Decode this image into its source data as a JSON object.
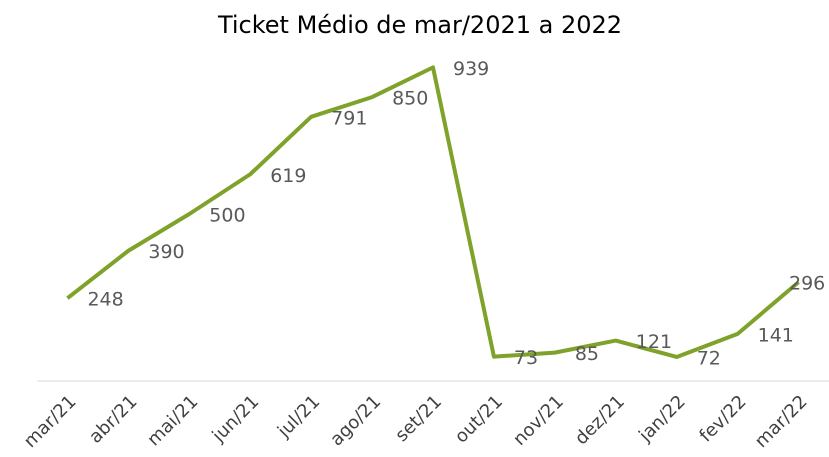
{
  "chart_data": {
    "type": "line",
    "title": "Ticket Médio de mar/2021 a 2022",
    "categories": [
      "mar/21",
      "abr/21",
      "mai/21",
      "jun/21",
      "jul/21",
      "ago/21",
      "set/21",
      "out/21",
      "nov/21",
      "dez/21",
      "jan/22",
      "fev/22",
      "mar/22"
    ],
    "values": [
      248,
      390,
      500,
      619,
      791,
      850,
      939,
      73,
      85,
      121,
      72,
      141,
      296
    ],
    "color": "#7fa22a",
    "ylim": [
      0,
      1000
    ]
  }
}
